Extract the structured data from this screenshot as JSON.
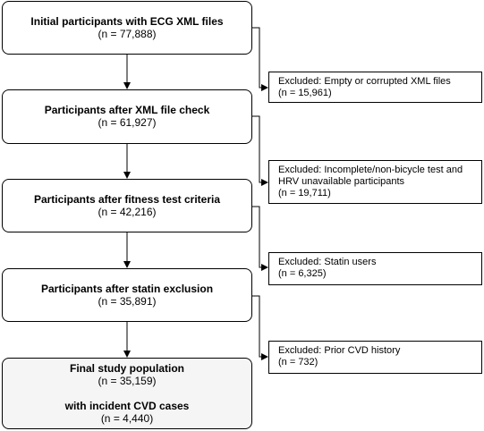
{
  "main_steps": [
    {
      "title": "Initial participants with ECG XML files",
      "count": "(n = 77,888)"
    },
    {
      "title": "Participants after XML file check",
      "count": "(n = 61,927)"
    },
    {
      "title": "Participants after fitness test criteria",
      "count": "(n = 42,216)"
    },
    {
      "title": "Participants after statin exclusion",
      "count": "(n = 35,891)"
    }
  ],
  "final": {
    "title": "Final study population",
    "count": "(n = 35,159)",
    "subtitle": "with incident CVD cases",
    "subcount": "(n = 4,440)"
  },
  "exclusions": [
    {
      "line1": "Excluded: Empty or corrupted XML files",
      "line2": "(n = 15,961)"
    },
    {
      "line1": "Excluded: Incomplete/non-bicycle test and",
      "line2": "HRV unavailable participants",
      "line3": "(n = 19,711)"
    },
    {
      "line1": "Excluded: Statin users",
      "line2": "(n = 6,325)"
    },
    {
      "line1": "Excluded: Prior CVD history",
      "line2": "(n = 732)"
    }
  ],
  "colors": {
    "stroke": "#000000",
    "final_fill": "#f5f5f5",
    "box_fill": "#ffffff"
  }
}
